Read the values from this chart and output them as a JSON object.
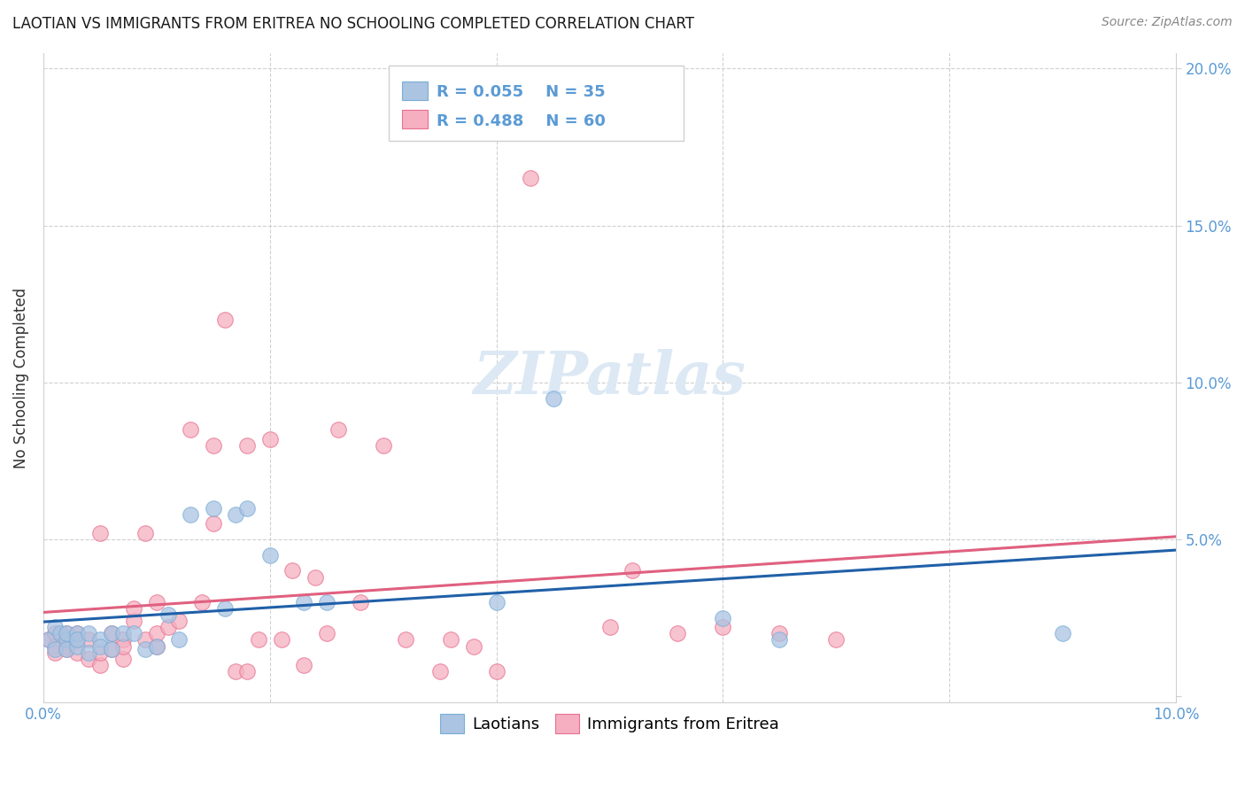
{
  "title": "LAOTIAN VS IMMIGRANTS FROM ERITREA NO SCHOOLING COMPLETED CORRELATION CHART",
  "source": "Source: ZipAtlas.com",
  "ylabel": "No Schooling Completed",
  "xlim": [
    0.0,
    0.1
  ],
  "ylim": [
    -0.002,
    0.205
  ],
  "xticks": [
    0.0,
    0.02,
    0.04,
    0.06,
    0.08,
    0.1
  ],
  "xticklabels": [
    "0.0%",
    "",
    "",
    "",
    "",
    "10.0%"
  ],
  "yticks": [
    0.0,
    0.05,
    0.1,
    0.15,
    0.2
  ],
  "right_yticklabels": [
    "",
    "5.0%",
    "10.0%",
    "15.0%",
    "20.0%"
  ],
  "title_color": "#1a1a1a",
  "source_color": "#888888",
  "axis_tick_color": "#5b9bd5",
  "grid_color": "#d0d0d0",
  "background_color": "#ffffff",
  "laotian_color": "#aac4e2",
  "eritrea_color": "#f5afc0",
  "laotian_edge_color": "#7aaed6",
  "eritrea_edge_color": "#e87090",
  "laotian_line_color": "#2060a8",
  "eritrea_line_color": "#e06080",
  "dashed_line_color": "#d8a0b0",
  "watermark_color": "#dce8f4",
  "legend_R1": "R = 0.055",
  "legend_N1": "N = 35",
  "legend_R2": "R = 0.488",
  "legend_N2": "N = 60",
  "laotian_x": [
    0.0005,
    0.001,
    0.001,
    0.0015,
    0.002,
    0.002,
    0.002,
    0.003,
    0.003,
    0.003,
    0.004,
    0.004,
    0.005,
    0.005,
    0.006,
    0.006,
    0.007,
    0.008,
    0.009,
    0.01,
    0.011,
    0.012,
    0.013,
    0.015,
    0.016,
    0.017,
    0.018,
    0.02,
    0.023,
    0.025,
    0.04,
    0.045,
    0.06,
    0.065,
    0.09
  ],
  "laotian_y": [
    0.018,
    0.015,
    0.022,
    0.02,
    0.018,
    0.015,
    0.02,
    0.016,
    0.02,
    0.018,
    0.014,
    0.02,
    0.018,
    0.016,
    0.015,
    0.02,
    0.02,
    0.02,
    0.015,
    0.016,
    0.026,
    0.018,
    0.058,
    0.06,
    0.028,
    0.058,
    0.06,
    0.045,
    0.03,
    0.03,
    0.03,
    0.095,
    0.025,
    0.018,
    0.02
  ],
  "eritrea_x": [
    0.0005,
    0.001,
    0.001,
    0.001,
    0.002,
    0.002,
    0.002,
    0.002,
    0.003,
    0.003,
    0.003,
    0.004,
    0.004,
    0.005,
    0.005,
    0.005,
    0.006,
    0.006,
    0.007,
    0.007,
    0.007,
    0.008,
    0.008,
    0.009,
    0.009,
    0.01,
    0.01,
    0.01,
    0.011,
    0.012,
    0.013,
    0.014,
    0.015,
    0.015,
    0.016,
    0.017,
    0.018,
    0.018,
    0.019,
    0.02,
    0.021,
    0.022,
    0.023,
    0.024,
    0.025,
    0.026,
    0.028,
    0.03,
    0.032,
    0.035,
    0.036,
    0.038,
    0.04,
    0.043,
    0.05,
    0.052,
    0.056,
    0.06,
    0.065,
    0.07
  ],
  "eritrea_y": [
    0.018,
    0.02,
    0.016,
    0.014,
    0.018,
    0.016,
    0.02,
    0.015,
    0.014,
    0.018,
    0.02,
    0.012,
    0.018,
    0.01,
    0.014,
    0.052,
    0.015,
    0.02,
    0.012,
    0.018,
    0.016,
    0.024,
    0.028,
    0.018,
    0.052,
    0.016,
    0.02,
    0.03,
    0.022,
    0.024,
    0.085,
    0.03,
    0.055,
    0.08,
    0.12,
    0.008,
    0.008,
    0.08,
    0.018,
    0.082,
    0.018,
    0.04,
    0.01,
    0.038,
    0.02,
    0.085,
    0.03,
    0.08,
    0.018,
    0.008,
    0.018,
    0.016,
    0.008,
    0.165,
    0.022,
    0.04,
    0.02,
    0.022,
    0.02,
    0.018
  ]
}
